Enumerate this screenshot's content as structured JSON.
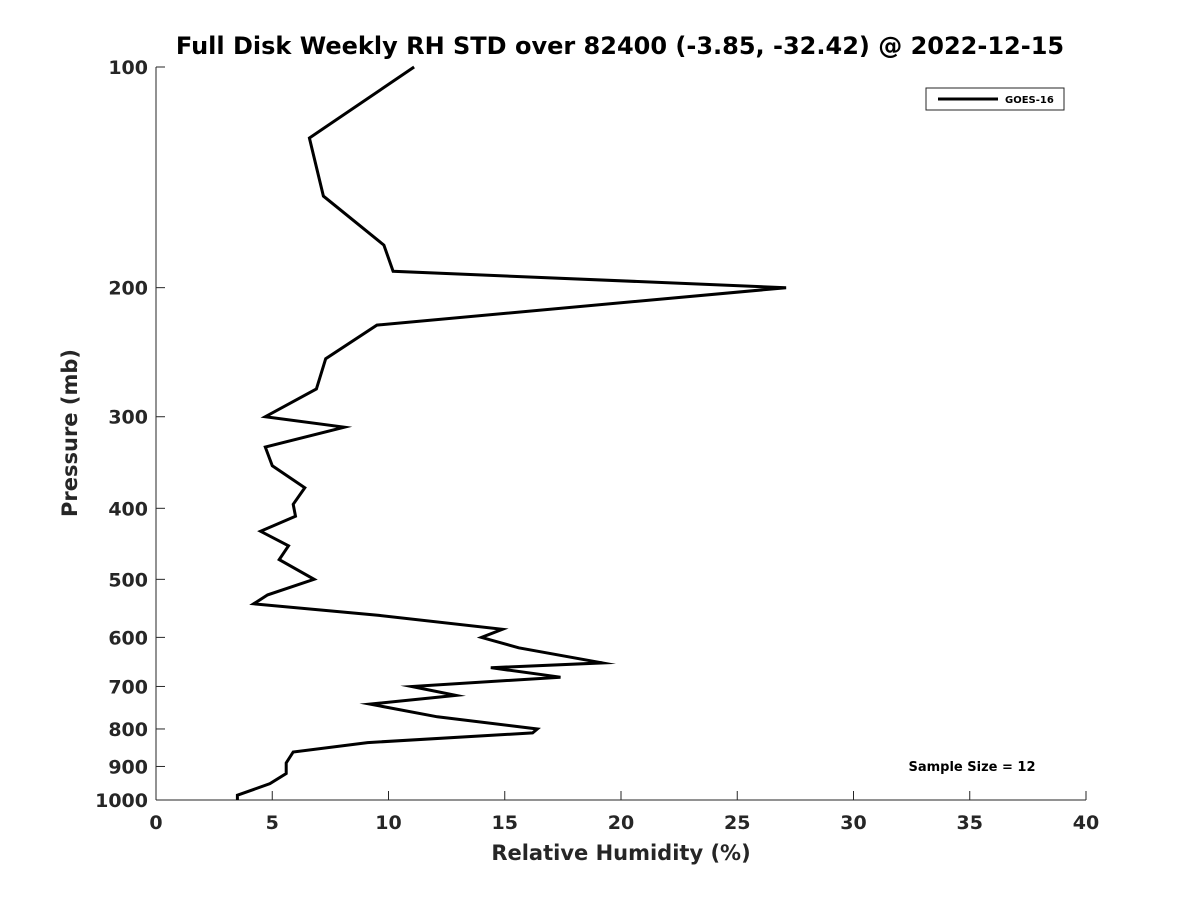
{
  "chart_data": {
    "type": "line",
    "title": "Full Disk Weekly RH STD over 82400 (-3.85, -32.42) @ 2022-12-15",
    "xlabel": "Relative Humidity (%)",
    "ylabel": "Pressure (mb)",
    "xlim": [
      0,
      40
    ],
    "ylim": [
      1000,
      100
    ],
    "y_scale": "log",
    "y_reversed": true,
    "x_ticks": [
      0,
      5,
      10,
      15,
      20,
      25,
      30,
      35,
      40
    ],
    "y_ticks": [
      100,
      200,
      300,
      400,
      500,
      600,
      700,
      800,
      900,
      1000
    ],
    "grid": false,
    "legend_position": "top-right",
    "series": [
      {
        "name": "GOES-16",
        "color": "#000000",
        "points": [
          [
            11.1,
            100
          ],
          [
            6.6,
            125
          ],
          [
            7.2,
            150
          ],
          [
            9.8,
            175
          ],
          [
            10.2,
            190
          ],
          [
            27.1,
            200
          ],
          [
            9.5,
            225
          ],
          [
            7.3,
            250
          ],
          [
            6.9,
            275
          ],
          [
            4.7,
            300
          ],
          [
            8.1,
            310
          ],
          [
            4.7,
            330
          ],
          [
            5.0,
            350
          ],
          [
            6.4,
            375
          ],
          [
            5.9,
            395
          ],
          [
            6.0,
            410
          ],
          [
            4.5,
            430
          ],
          [
            5.7,
            450
          ],
          [
            5.3,
            470
          ],
          [
            6.8,
            500
          ],
          [
            4.8,
            525
          ],
          [
            4.2,
            540
          ],
          [
            9.6,
            560
          ],
          [
            14.9,
            585
          ],
          [
            14.0,
            600
          ],
          [
            15.6,
            620
          ],
          [
            19.2,
            650
          ],
          [
            14.4,
            660
          ],
          [
            17.4,
            680
          ],
          [
            11.0,
            700
          ],
          [
            12.9,
            720
          ],
          [
            9.2,
            740
          ],
          [
            12.1,
            770
          ],
          [
            16.4,
            800
          ],
          [
            16.2,
            810
          ],
          [
            9.1,
            835
          ],
          [
            5.9,
            860
          ],
          [
            5.6,
            890
          ],
          [
            5.6,
            920
          ],
          [
            4.9,
            950
          ],
          [
            3.5,
            985
          ],
          [
            3.5,
            1000
          ]
        ]
      }
    ],
    "annotation": "Sample Size = 12"
  }
}
